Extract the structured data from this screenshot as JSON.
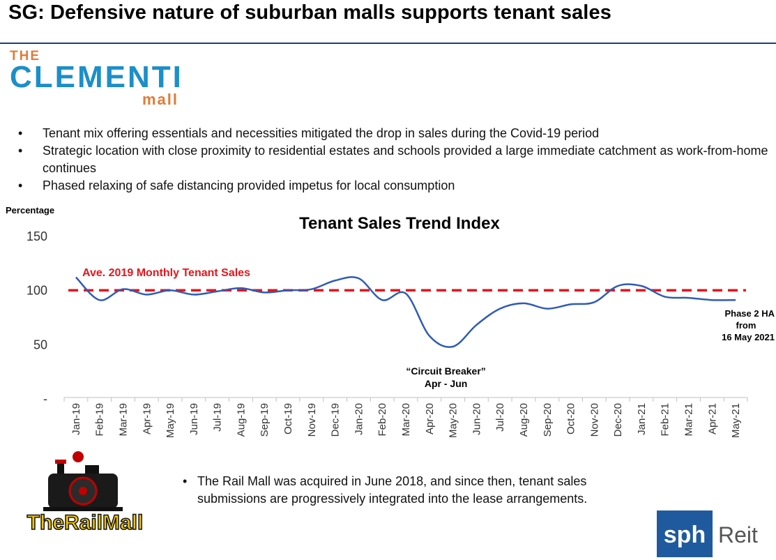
{
  "header": {
    "title": "SG: Defensive nature of suburban malls supports tenant sales"
  },
  "clementi_logo": {
    "line1": "THE",
    "line2": "CLEMENTI",
    "line3": "mall"
  },
  "bullets": [
    "Tenant mix offering essentials and necessities mitigated the drop in sales during the Covid-19 period",
    "Strategic location with close proximity to residential estates and schools provided a large immediate catchment as work-from-home continues",
    "Phased relaxing of safe distancing provided impetus for local consumption"
  ],
  "rail_mall": {
    "logo_text": "TheRailMall",
    "note": "The Rail Mall was acquired in June 2018, and since then, tenant sales submissions are progressively integrated into the lease arrangements."
  },
  "sph_logo": {
    "text1": "sph",
    "text2": "Reit"
  },
  "colors": {
    "line": "#2f5bb7",
    "benchmark": "#e8141b",
    "title_rule": "#1f3d7a"
  },
  "chart_data": {
    "type": "line",
    "title": "Tenant Sales Trend Index",
    "ylabel": "Percentage",
    "xlabel": "",
    "ylim": [
      0,
      150
    ],
    "yticks": [
      "-",
      "50",
      "100",
      "150"
    ],
    "categories": [
      "Jan-19",
      "Feb-19",
      "Mar-19",
      "Apr-19",
      "May-19",
      "Jun-19",
      "Jul-19",
      "Aug-19",
      "Sep-19",
      "Oct-19",
      "Nov-19",
      "Dec-19",
      "Jan-20",
      "Feb-20",
      "Mar-20",
      "Apr-20",
      "May-20",
      "Jun-20",
      "Jul-20",
      "Aug-20",
      "Sep-20",
      "Oct-20",
      "Nov-20",
      "Dec-20",
      "Jan-21",
      "Feb-21",
      "Mar-21",
      "Apr-21",
      "May-21"
    ],
    "series": [
      {
        "values": [
          111,
          90,
          100,
          95,
          99,
          95,
          98,
          101,
          97,
          99,
          100,
          108,
          110,
          90,
          96,
          57,
          47,
          67,
          82,
          87,
          82,
          86,
          88,
          103,
          103,
          93,
          92,
          90,
          90
        ]
      }
    ],
    "benchmark": {
      "label": "Ave. 2019 Monthly Tenant Sales",
      "value": 99
    },
    "annotations": [
      {
        "text": "“Circuit Breaker”",
        "text2": "Apr - Jun",
        "x": "May-20",
        "y": 47
      },
      {
        "text": "Phase 2 HA",
        "text2": "from",
        "text3": "16 May 2021",
        "x": "May-21",
        "y": 90
      }
    ],
    "grid": false,
    "legend": "none"
  }
}
